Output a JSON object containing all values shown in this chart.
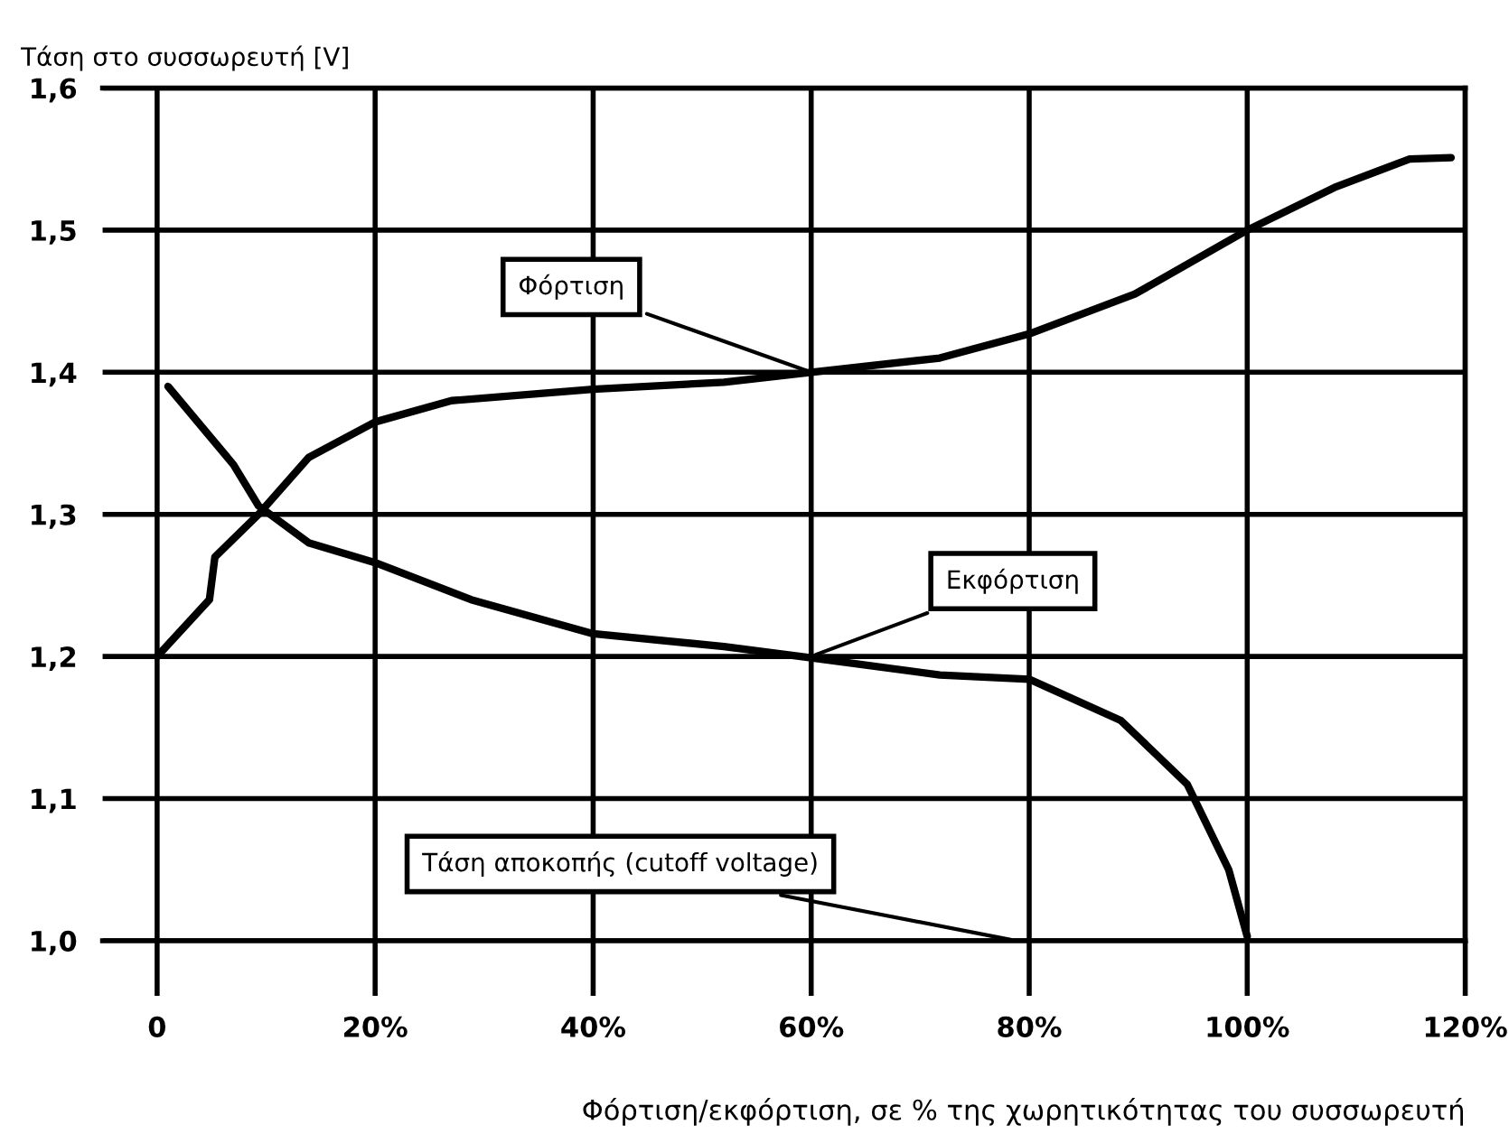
{
  "chart_data": {
    "type": "line",
    "ylabel": "Τάση στο συσσωρευτή [V]",
    "xlabel": "Φόρτιση/εκφόρτιση, σε % της χωρητικότητας του συσσωρευτή",
    "series": [
      {
        "color": "#000000",
        "x": [
          0,
          4.8,
          5.3,
          9.3,
          13.9,
          20,
          27,
          40,
          52,
          60,
          71.8,
          80,
          89.7,
          100,
          108,
          114.9,
          118.7
        ],
        "values": [
          1.2,
          1.24,
          1.27,
          1.3,
          1.34,
          1.365,
          1.38,
          1.388,
          1.393,
          1.4,
          1.41,
          1.427,
          1.455,
          1.5,
          1.53,
          1.55,
          1.551
        ]
      },
      {
        "color": "#000000",
        "x": [
          1,
          7,
          9.3,
          13.9,
          20,
          28.8,
          40,
          52,
          60,
          71.8,
          80,
          88.4,
          94.5,
          98.3,
          100
        ],
        "values": [
          1.39,
          1.335,
          1.306,
          1.28,
          1.266,
          1.24,
          1.216,
          1.207,
          1.199,
          1.187,
          1.184,
          1.155,
          1.11,
          1.05,
          1.003
        ]
      }
    ],
    "annotations": [
      {
        "text": "Φόρτιση",
        "x": 60,
        "y": 1.4
      },
      {
        "text": "Εκφόρτιση",
        "x": 60,
        "y": 1.2
      },
      "Τάση αποκοπής (cutoff voltage)"
    ],
    "xlim": [
      -5,
      120
    ],
    "ylim": [
      1.0,
      1.6
    ],
    "xticks": [
      {
        "value": 0,
        "label": "0"
      },
      {
        "value": 20,
        "label": "20%"
      },
      {
        "value": 40,
        "label": "40%"
      },
      {
        "value": 60,
        "label": "60%"
      },
      {
        "value": 80,
        "label": "80%"
      },
      {
        "value": 100,
        "label": "100%"
      },
      {
        "value": 120,
        "label": "120%"
      }
    ],
    "yticks": [
      {
        "value": 1.0,
        "label": "1,0"
      },
      {
        "value": 1.1,
        "label": "1,1"
      },
      {
        "value": 1.2,
        "label": "1,2"
      },
      {
        "value": 1.3,
        "label": "1,3"
      },
      {
        "value": 1.4,
        "label": "1,4"
      },
      {
        "value": 1.5,
        "label": "1,5"
      },
      {
        "value": 1.6,
        "label": "1,6"
      }
    ],
    "grid": true,
    "marker": "none",
    "line_style": "solid",
    "legend": false
  }
}
